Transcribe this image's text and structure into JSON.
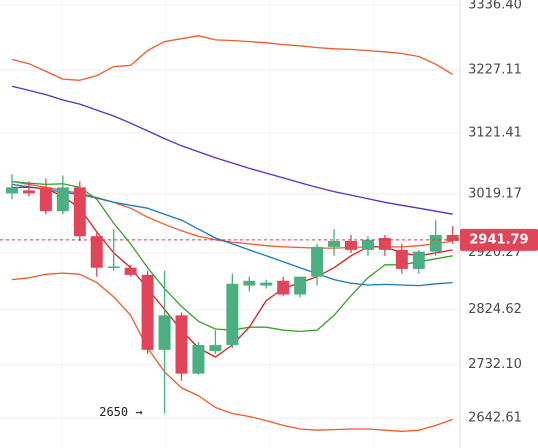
{
  "chart_data": {
    "type": "candlestick",
    "ylim": [
      2592,
      3345
    ],
    "yticks": [
      {
        "value": 3336.4,
        "label": "3336.40"
      },
      {
        "value": 3227.11,
        "label": "3227.11"
      },
      {
        "value": 3121.41,
        "label": "3121.41"
      },
      {
        "value": 3019.17,
        "label": "3019.17"
      },
      {
        "value": 2920.27,
        "label": "2920.27"
      },
      {
        "value": 2824.62,
        "label": "2824.62"
      },
      {
        "value": 2732.1,
        "label": "2732.10"
      },
      {
        "value": 2642.61,
        "label": "2642.61"
      }
    ],
    "current_price": {
      "value": 2941.79,
      "label": "2941.79"
    },
    "annotation": {
      "text": "2650 →",
      "index": 8,
      "value": 2650
    },
    "candles": [
      {
        "o": 3020,
        "h": 3052,
        "l": 3010,
        "c": 3030
      },
      {
        "o": 3025,
        "h": 3040,
        "l": 3015,
        "c": 3020
      },
      {
        "o": 3030,
        "h": 3045,
        "l": 2985,
        "c": 2990
      },
      {
        "o": 2990,
        "h": 3050,
        "l": 2985,
        "c": 3030
      },
      {
        "o": 3030,
        "h": 3040,
        "l": 2940,
        "c": 2948
      },
      {
        "o": 2948,
        "h": 2955,
        "l": 2880,
        "c": 2895
      },
      {
        "o": 2895,
        "h": 2960,
        "l": 2890,
        "c": 2897
      },
      {
        "o": 2895,
        "h": 2900,
        "l": 2880,
        "c": 2883
      },
      {
        "o": 2883,
        "h": 2890,
        "l": 2750,
        "c": 2757
      },
      {
        "o": 2757,
        "h": 2890,
        "l": 2650,
        "c": 2815
      },
      {
        "o": 2815,
        "h": 2820,
        "l": 2705,
        "c": 2717
      },
      {
        "o": 2717,
        "h": 2770,
        "l": 2715,
        "c": 2765
      },
      {
        "o": 2755,
        "h": 2790,
        "l": 2750,
        "c": 2765
      },
      {
        "o": 2765,
        "h": 2885,
        "l": 2760,
        "c": 2868
      },
      {
        "o": 2865,
        "h": 2880,
        "l": 2855,
        "c": 2873
      },
      {
        "o": 2865,
        "h": 2875,
        "l": 2860,
        "c": 2870
      },
      {
        "o": 2873,
        "h": 2880,
        "l": 2848,
        "c": 2850
      },
      {
        "o": 2850,
        "h": 2880,
        "l": 2845,
        "c": 2880
      },
      {
        "o": 2880,
        "h": 2935,
        "l": 2865,
        "c": 2930
      },
      {
        "o": 2930,
        "h": 2960,
        "l": 2915,
        "c": 2940
      },
      {
        "o": 2940,
        "h": 2950,
        "l": 2920,
        "c": 2925
      },
      {
        "o": 2925,
        "h": 2948,
        "l": 2915,
        "c": 2942
      },
      {
        "o": 2945,
        "h": 2950,
        "l": 2915,
        "c": 2925
      },
      {
        "o": 2925,
        "h": 2935,
        "l": 2885,
        "c": 2893
      },
      {
        "o": 2893,
        "h": 2925,
        "l": 2885,
        "c": 2922
      },
      {
        "o": 2922,
        "h": 2975,
        "l": 2915,
        "c": 2950
      },
      {
        "o": 2950,
        "h": 2965,
        "l": 2935,
        "c": 2940
      }
    ],
    "lines": [
      {
        "color": "#f05a28",
        "values": [
          3245,
          3238,
          3225,
          3212,
          3210,
          3218,
          3233,
          3235,
          3260,
          3275,
          3280,
          3285,
          3278,
          3277,
          3275,
          3273,
          3270,
          3268,
          3265,
          3263,
          3262,
          3260,
          3258,
          3255,
          3250,
          3237,
          3220
        ]
      },
      {
        "color": "#f05a28",
        "values": [
          2875,
          2878,
          2884,
          2886,
          2884,
          2870,
          2846,
          2815,
          2760,
          2720,
          2693,
          2680,
          2660,
          2650,
          2645,
          2638,
          2630,
          2624,
          2622,
          2623,
          2624,
          2624,
          2622,
          2620,
          2622,
          2630,
          2640
        ]
      },
      {
        "color": "#f05a28",
        "values": [
          3040,
          3035,
          3030,
          3025,
          3020,
          3013,
          3005,
          2995,
          2980,
          2968,
          2957,
          2948,
          2942,
          2938,
          2935,
          2932,
          2930,
          2929,
          2928,
          2928,
          2929,
          2930,
          2930,
          2930,
          2932,
          2935,
          2940
        ]
      },
      {
        "color": "#5a2fc2",
        "values": [
          3200,
          3193,
          3186,
          3177,
          3170,
          3160,
          3150,
          3138,
          3125,
          3112,
          3100,
          3090,
          3080,
          3071,
          3062,
          3054,
          3046,
          3038,
          3030,
          3023,
          3017,
          3011,
          3005,
          3000,
          2995,
          2990,
          2985
        ]
      },
      {
        "color": "#1a78c2",
        "values": [
          3035,
          3031,
          3027,
          3022,
          3018,
          3012,
          3005,
          3000,
          2995,
          2985,
          2975,
          2960,
          2945,
          2935,
          2925,
          2915,
          2905,
          2895,
          2885,
          2875,
          2869,
          2866,
          2867,
          2866,
          2865,
          2868,
          2870
        ]
      },
      {
        "color": "#3aa02c",
        "values": [
          3040,
          3037,
          3035,
          3036,
          3030,
          3010,
          2970,
          2935,
          2895,
          2860,
          2830,
          2805,
          2792,
          2790,
          2795,
          2795,
          2790,
          2788,
          2790,
          2815,
          2848,
          2878,
          2900,
          2900,
          2905,
          2910,
          2915
        ]
      },
      {
        "color": "#d82020",
        "values": [
          3030,
          3030,
          3028,
          3015,
          2995,
          2955,
          2920,
          2895,
          2860,
          2825,
          2790,
          2760,
          2745,
          2765,
          2795,
          2840,
          2860,
          2870,
          2880,
          2895,
          2915,
          2930,
          2930,
          2920,
          2915,
          2920,
          2925
        ]
      }
    ]
  }
}
